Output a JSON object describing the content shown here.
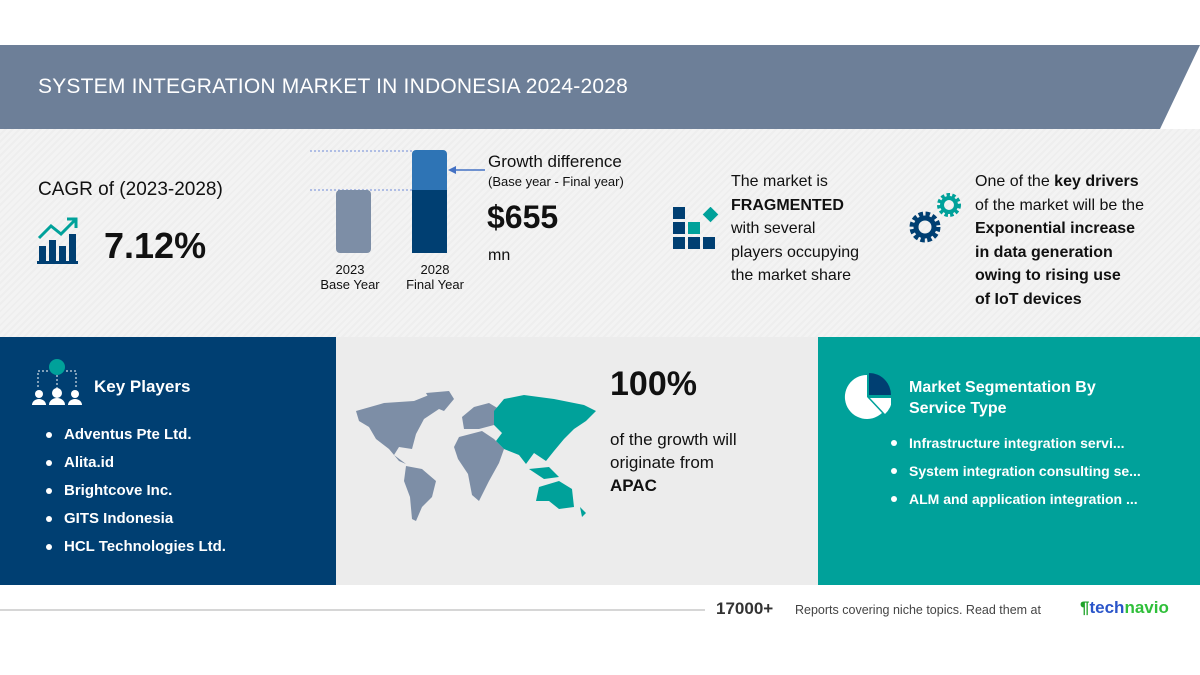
{
  "header": {
    "title": "SYSTEM INTEGRATION MARKET IN INDONESIA 2024-2028"
  },
  "cagr": {
    "label": "CAGR of (2023-2028)",
    "value": "7.12%",
    "icon": "growth-chart-icon"
  },
  "growth": {
    "bars": [
      {
        "year": "2023",
        "label": "Base Year"
      },
      {
        "year": "2028",
        "label": "Final Year"
      }
    ],
    "title": "Growth difference",
    "subtitle": "(Base year - Final year)",
    "value": "$655",
    "unit": "mn"
  },
  "fragmented": {
    "line1": "The market is",
    "bold": "FRAGMENTED",
    "line3": "with several",
    "line4": "players occupying",
    "line5": "the market share",
    "icon": "blocks-icon"
  },
  "driver": {
    "pre": "One of the ",
    "bold1": "key drivers",
    "line2": "of the market will be the",
    "b1": "Exponential increase",
    "b2": "in data generation",
    "b3": "owing to rising use",
    "b4": "of IoT devices",
    "icon": "gears-icon"
  },
  "players": {
    "title": "Key Players",
    "items": [
      "Adventus Pte Ltd.",
      "Alita.id",
      "Brightcove Inc.",
      "GITS Indonesia",
      "HCL Technologies Ltd."
    ]
  },
  "region": {
    "value": "100%",
    "line1": "of the growth will",
    "line2": "originate from",
    "region": "APAC"
  },
  "segmentation": {
    "title1": "Market Segmentation By",
    "title2": "Service Type",
    "items": [
      "Infrastructure integration servi...",
      "System integration consulting se...",
      "ALM and application integration ..."
    ]
  },
  "footer": {
    "count": "17000+",
    "text": "Reports covering niche topics. Read them at",
    "brand1": "tech",
    "brand2": "navio"
  },
  "colors": {
    "navy": "#003f72",
    "teal": "#00a19a",
    "slate": "#6d7f98"
  }
}
